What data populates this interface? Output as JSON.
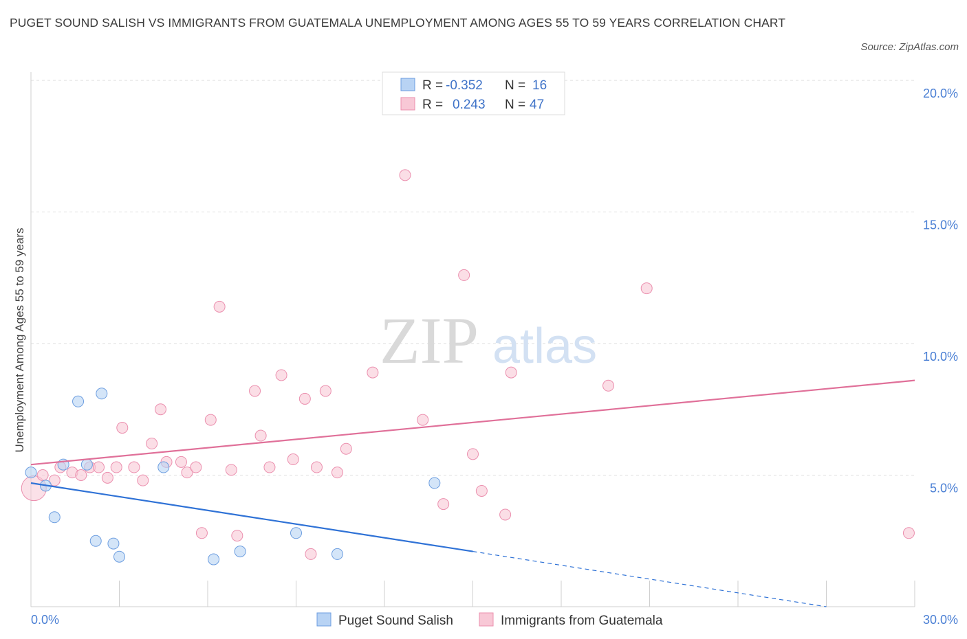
{
  "header": {
    "title": "PUGET SOUND SALISH VS IMMIGRANTS FROM GUATEMALA UNEMPLOYMENT AMONG AGES 55 TO 59 YEARS CORRELATION CHART",
    "source": "Source: ZipAtlas.com"
  },
  "colors": {
    "series1_fill": "#b8d3f4",
    "series1_stroke": "#6d9ee0",
    "series1_line": "#2f72d6",
    "series2_fill": "#f8c8d6",
    "series2_stroke": "#eb8fae",
    "series2_line": "#e07099",
    "tick_text": "#4a7fd4"
  },
  "legend": {
    "r_label": "R =",
    "n_label": "N =",
    "rows": [
      {
        "r": "-0.352",
        "n": "16"
      },
      {
        "r": "0.243",
        "n": "47"
      }
    ]
  },
  "watermark": {
    "zip": "ZIP",
    "atlas": "atlas"
  },
  "chart_data": {
    "type": "scatter",
    "title": "PUGET SOUND SALISH VS IMMIGRANTS FROM GUATEMALA UNEMPLOYMENT AMONG AGES 55 TO 59 YEARS CORRELATION CHART",
    "xlabel": "",
    "ylabel": "Unemployment Among Ages 55 to 59 years",
    "xlim": [
      0,
      30
    ],
    "ylim": [
      0,
      20
    ],
    "x_tick_labels": [
      "0.0%",
      "30.0%"
    ],
    "y_tick_labels": [
      "5.0%",
      "10.0%",
      "15.0%",
      "20.0%"
    ],
    "y_ticks": [
      5,
      10,
      15,
      20
    ],
    "grid": true,
    "legend_position": "top-center",
    "series": [
      {
        "name": "Puget Sound Salish",
        "r": -0.352,
        "n": 16,
        "trend": {
          "x0": 0,
          "y0": 4.7,
          "x1": 15,
          "y1": 2.1,
          "dashed_to_x": 27,
          "dashed_to_y": 0
        },
        "points": [
          {
            "x": 0.0,
            "y": 5.1
          },
          {
            "x": 0.5,
            "y": 4.6
          },
          {
            "x": 0.8,
            "y": 3.4
          },
          {
            "x": 1.1,
            "y": 5.4
          },
          {
            "x": 1.6,
            "y": 7.8
          },
          {
            "x": 1.9,
            "y": 5.4
          },
          {
            "x": 2.2,
            "y": 2.5
          },
          {
            "x": 2.4,
            "y": 8.1
          },
          {
            "x": 2.8,
            "y": 2.4
          },
          {
            "x": 3.0,
            "y": 1.9
          },
          {
            "x": 4.5,
            "y": 5.3
          },
          {
            "x": 6.2,
            "y": 1.8
          },
          {
            "x": 7.1,
            "y": 2.1
          },
          {
            "x": 9.0,
            "y": 2.8
          },
          {
            "x": 10.4,
            "y": 2.0
          },
          {
            "x": 13.7,
            "y": 4.7
          }
        ]
      },
      {
        "name": "Immigrants from Guatemala",
        "r": 0.243,
        "n": 47,
        "trend": {
          "x0": 0,
          "y0": 5.4,
          "x1": 30,
          "y1": 8.6
        },
        "points": [
          {
            "x": 0.1,
            "y": 4.5
          },
          {
            "x": 0.4,
            "y": 5.0
          },
          {
            "x": 0.8,
            "y": 4.8
          },
          {
            "x": 1.0,
            "y": 5.3
          },
          {
            "x": 1.4,
            "y": 5.1
          },
          {
            "x": 1.7,
            "y": 5.0
          },
          {
            "x": 2.0,
            "y": 5.3
          },
          {
            "x": 2.3,
            "y": 5.3
          },
          {
            "x": 2.6,
            "y": 4.9
          },
          {
            "x": 2.9,
            "y": 5.3
          },
          {
            "x": 3.1,
            "y": 6.8
          },
          {
            "x": 3.5,
            "y": 5.3
          },
          {
            "x": 3.8,
            "y": 4.8
          },
          {
            "x": 4.1,
            "y": 6.2
          },
          {
            "x": 4.4,
            "y": 7.5
          },
          {
            "x": 4.6,
            "y": 5.5
          },
          {
            "x": 5.1,
            "y": 5.5
          },
          {
            "x": 5.3,
            "y": 5.1
          },
          {
            "x": 5.6,
            "y": 5.3
          },
          {
            "x": 5.8,
            "y": 2.8
          },
          {
            "x": 6.1,
            "y": 7.1
          },
          {
            "x": 6.4,
            "y": 11.4
          },
          {
            "x": 6.8,
            "y": 5.2
          },
          {
            "x": 7.0,
            "y": 2.7
          },
          {
            "x": 7.6,
            "y": 8.2
          },
          {
            "x": 7.8,
            "y": 6.5
          },
          {
            "x": 8.1,
            "y": 5.3
          },
          {
            "x": 8.5,
            "y": 8.8
          },
          {
            "x": 8.9,
            "y": 5.6
          },
          {
            "x": 9.3,
            "y": 7.9
          },
          {
            "x": 9.5,
            "y": 2.0
          },
          {
            "x": 9.7,
            "y": 5.3
          },
          {
            "x": 10.0,
            "y": 8.2
          },
          {
            "x": 10.4,
            "y": 5.1
          },
          {
            "x": 10.7,
            "y": 6.0
          },
          {
            "x": 11.6,
            "y": 8.9
          },
          {
            "x": 12.7,
            "y": 16.4
          },
          {
            "x": 13.3,
            "y": 7.1
          },
          {
            "x": 14.0,
            "y": 3.9
          },
          {
            "x": 14.7,
            "y": 12.6
          },
          {
            "x": 15.0,
            "y": 5.8
          },
          {
            "x": 15.3,
            "y": 4.4
          },
          {
            "x": 16.1,
            "y": 3.5
          },
          {
            "x": 16.3,
            "y": 8.9
          },
          {
            "x": 19.6,
            "y": 8.4
          },
          {
            "x": 20.9,
            "y": 12.1
          },
          {
            "x": 29.8,
            "y": 2.8
          }
        ]
      }
    ]
  }
}
